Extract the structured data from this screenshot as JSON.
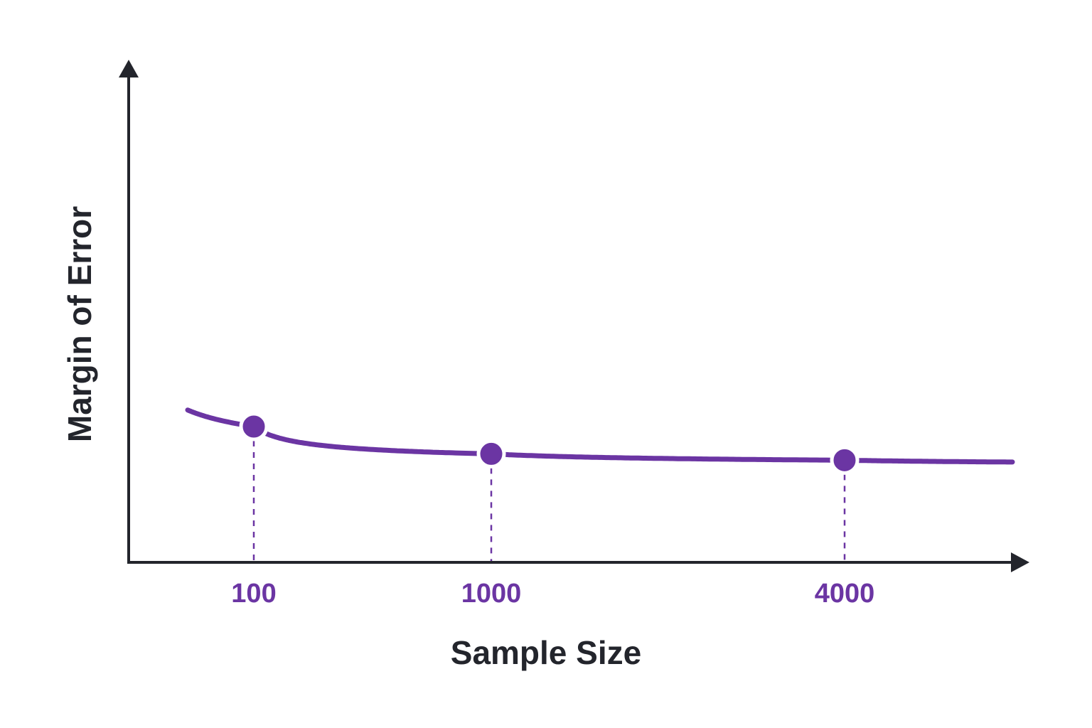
{
  "colors": {
    "accent": "#6b35a3",
    "axis": "#23252c",
    "background": "#ffffff"
  },
  "chart_data": {
    "type": "line",
    "title": "",
    "xlabel": "Sample Size",
    "ylabel": "Margin of Error",
    "y_ticks_shown": false,
    "grid": false,
    "legend": "none",
    "curve_shape": "decreasing, proportional to 1/sqrt(n)",
    "x_tick_labels": [
      "100",
      "1000",
      "4000"
    ],
    "highlighted_points": [
      {
        "x": 100,
        "label": "100"
      },
      {
        "x": 1000,
        "label": "1000"
      },
      {
        "x": 4000,
        "label": "4000"
      }
    ]
  }
}
